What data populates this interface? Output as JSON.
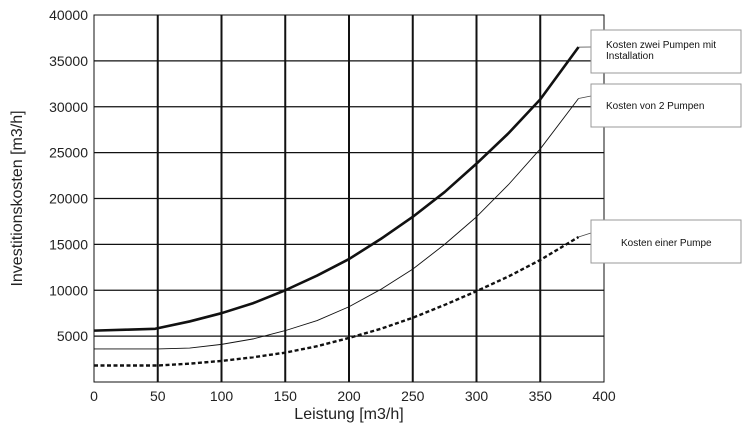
{
  "chart_data": {
    "type": "line",
    "title": "",
    "xlabel": "Leistung [m3/h]",
    "ylabel": "Investitionskosten [m3/h]",
    "xlim": [
      0,
      400
    ],
    "ylim": [
      0,
      40000
    ],
    "x_ticks": [
      "0",
      "50",
      "100",
      "150",
      "200",
      "250",
      "300",
      "350",
      "400"
    ],
    "y_ticks": [
      "5000",
      "10000",
      "15000",
      "20000",
      "25000",
      "30000",
      "35000",
      "40000"
    ],
    "grid": true,
    "series": [
      {
        "name": "Kosten zwei Pumpen mit Installation",
        "style": "thick-solid",
        "color": "#111111",
        "x": [
          0,
          25,
          48,
          75,
          100,
          125,
          150,
          175,
          200,
          225,
          250,
          275,
          300,
          325,
          350,
          380
        ],
        "y": [
          5600,
          5700,
          5800,
          6600,
          7500,
          8600,
          10000,
          11600,
          13400,
          15600,
          18000,
          20700,
          23800,
          27100,
          30800,
          36500
        ]
      },
      {
        "name": "Kosten von 2 Pumpen",
        "style": "thin-solid",
        "color": "#111111",
        "x": [
          0,
          25,
          50,
          75,
          100,
          125,
          150,
          175,
          200,
          225,
          250,
          275,
          300,
          325,
          350,
          380
        ],
        "y": [
          3600,
          3600,
          3600,
          3700,
          4100,
          4700,
          5600,
          6700,
          8200,
          10100,
          12300,
          15000,
          18000,
          21500,
          25400,
          30900
        ]
      },
      {
        "name": "Kosten einer Pumpe",
        "style": "dashed",
        "color": "#111111",
        "x": [
          0,
          25,
          50,
          75,
          100,
          125,
          150,
          175,
          200,
          225,
          250,
          275,
          300,
          325,
          350,
          380
        ],
        "y": [
          1800,
          1800,
          1800,
          2000,
          2300,
          2700,
          3200,
          3900,
          4800,
          5800,
          7000,
          8400,
          9900,
          11500,
          13300,
          15800
        ]
      }
    ],
    "legend": [
      {
        "lines": [
          "Kosten zwei Pumpen mit",
          "Installation"
        ]
      },
      {
        "lines": [
          "Kosten von 2 Pumpen"
        ]
      },
      {
        "lines": [
          "Kosten einer Pumpe"
        ]
      }
    ]
  }
}
